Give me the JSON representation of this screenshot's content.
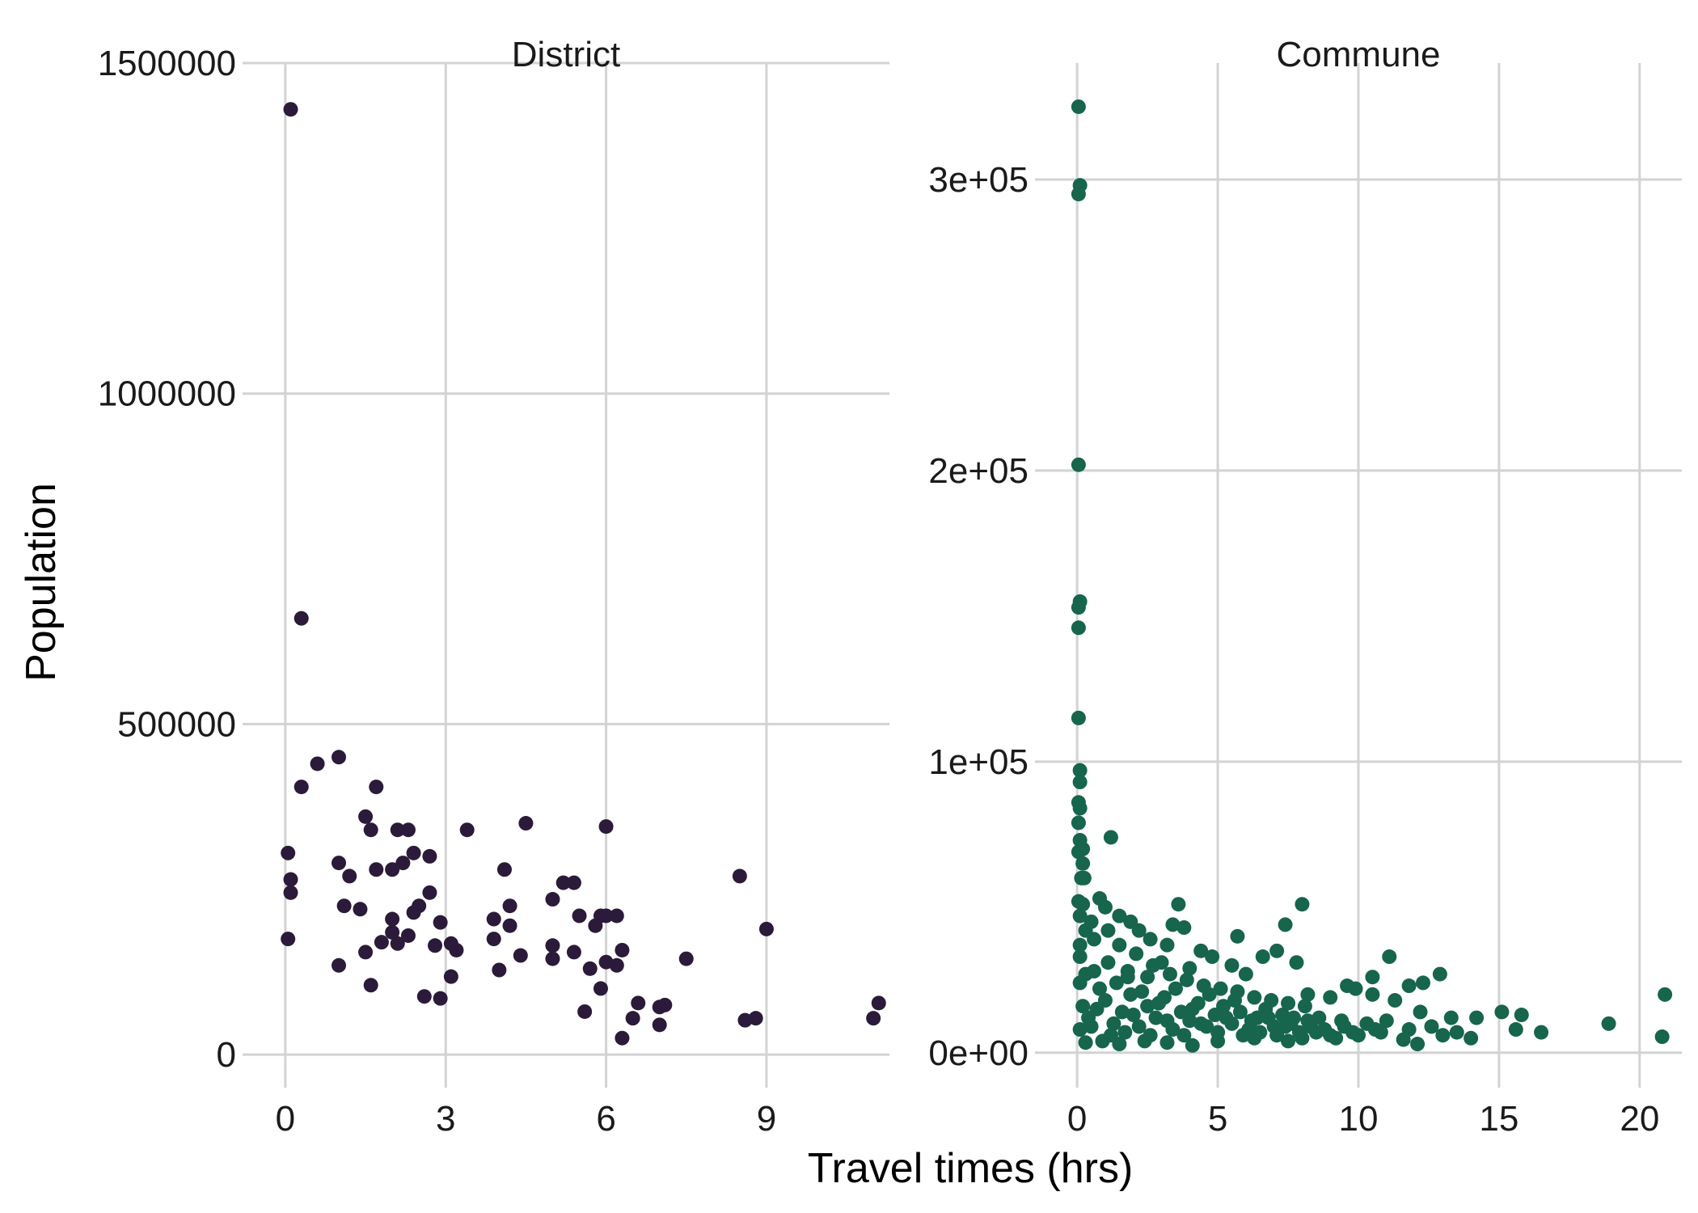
{
  "chart_data": {
    "type": "scatter",
    "xlabel": "Travel times (hrs)",
    "ylabel": "Population",
    "grid": true,
    "panels": [
      {
        "name": "District",
        "color": "#2b1a3a",
        "xlim": [
          -0.8,
          11.3
        ],
        "ylim": [
          -50000,
          1500000
        ],
        "xticks": [
          0,
          3,
          6,
          9
        ],
        "xtick_labels": [
          "0",
          "3",
          "6",
          "9"
        ],
        "yticks": [
          0,
          500000,
          1000000,
          1500000
        ],
        "ytick_labels": [
          "0",
          "500000",
          "1000000",
          "1500000"
        ],
        "points": [
          [
            0.1,
            1430000
          ],
          [
            0.3,
            660000
          ],
          [
            0.6,
            440000
          ],
          [
            1.0,
            450000
          ],
          [
            0.3,
            405000
          ],
          [
            1.7,
            405000
          ],
          [
            1.5,
            360000
          ],
          [
            1.6,
            340000
          ],
          [
            2.1,
            340000
          ],
          [
            2.3,
            340000
          ],
          [
            3.4,
            340000
          ],
          [
            4.5,
            350000
          ],
          [
            6.0,
            345000
          ],
          [
            0.05,
            305000
          ],
          [
            2.4,
            305000
          ],
          [
            2.7,
            300000
          ],
          [
            2.2,
            290000
          ],
          [
            2.0,
            280000
          ],
          [
            1.0,
            290000
          ],
          [
            1.7,
            280000
          ],
          [
            4.1,
            280000
          ],
          [
            8.5,
            270000
          ],
          [
            0.1,
            265000
          ],
          [
            1.2,
            270000
          ],
          [
            5.2,
            260000
          ],
          [
            5.4,
            260000
          ],
          [
            0.1,
            245000
          ],
          [
            2.7,
            245000
          ],
          [
            5.0,
            235000
          ],
          [
            2.5,
            225000
          ],
          [
            1.1,
            225000
          ],
          [
            1.4,
            220000
          ],
          [
            4.2,
            225000
          ],
          [
            2.4,
            215000
          ],
          [
            5.5,
            210000
          ],
          [
            5.9,
            210000
          ],
          [
            6.0,
            210000
          ],
          [
            6.2,
            210000
          ],
          [
            2.9,
            200000
          ],
          [
            2.0,
            205000
          ],
          [
            3.9,
            205000
          ],
          [
            4.2,
            195000
          ],
          [
            5.8,
            195000
          ],
          [
            2.0,
            185000
          ],
          [
            2.3,
            180000
          ],
          [
            9.0,
            190000
          ],
          [
            0.05,
            175000
          ],
          [
            1.8,
            170000
          ],
          [
            2.1,
            168000
          ],
          [
            2.8,
            165000
          ],
          [
            3.1,
            168000
          ],
          [
            3.9,
            175000
          ],
          [
            5.0,
            165000
          ],
          [
            3.2,
            158000
          ],
          [
            1.5,
            155000
          ],
          [
            5.4,
            155000
          ],
          [
            6.3,
            158000
          ],
          [
            4.4,
            150000
          ],
          [
            5.0,
            145000
          ],
          [
            7.5,
            145000
          ],
          [
            6.0,
            140000
          ],
          [
            6.2,
            135000
          ],
          [
            1.0,
            135000
          ],
          [
            4.0,
            128000
          ],
          [
            5.7,
            130000
          ],
          [
            3.1,
            118000
          ],
          [
            1.6,
            105000
          ],
          [
            5.9,
            100000
          ],
          [
            2.6,
            88000
          ],
          [
            2.9,
            85000
          ],
          [
            6.6,
            78000
          ],
          [
            7.0,
            72000
          ],
          [
            7.1,
            75000
          ],
          [
            11.1,
            78000
          ],
          [
            5.6,
            65000
          ],
          [
            6.5,
            55000
          ],
          [
            8.6,
            52000
          ],
          [
            8.8,
            55000
          ],
          [
            11.0,
            55000
          ],
          [
            7.0,
            45000
          ],
          [
            6.3,
            25000
          ]
        ]
      },
      {
        "name": "Commune",
        "color": "#16654c",
        "xlim": [
          -1.5,
          21.5
        ],
        "ylim": [
          -12000,
          340000
        ],
        "xticks": [
          0,
          5,
          10,
          15,
          20
        ],
        "xtick_labels": [
          "0",
          "5",
          "10",
          "15",
          "20"
        ],
        "yticks": [
          0,
          100000,
          200000,
          300000
        ],
        "ytick_labels": [
          "0e+00",
          "1e+05",
          "2e+05",
          "3e+05"
        ],
        "points": [
          [
            0.05,
            325000
          ],
          [
            0.1,
            298000
          ],
          [
            0.05,
            295000
          ],
          [
            0.05,
            202000
          ],
          [
            0.1,
            155000
          ],
          [
            0.05,
            153000
          ],
          [
            0.05,
            146000
          ],
          [
            0.05,
            115000
          ],
          [
            0.1,
            97000
          ],
          [
            0.1,
            93000
          ],
          [
            0.05,
            86000
          ],
          [
            0.1,
            84000
          ],
          [
            0.05,
            79000
          ],
          [
            0.1,
            73000
          ],
          [
            0.2,
            70000
          ],
          [
            0.05,
            69000
          ],
          [
            0.2,
            65000
          ],
          [
            1.2,
            74000
          ],
          [
            0.15,
            60000
          ],
          [
            0.25,
            60000
          ],
          [
            0.05,
            52000
          ],
          [
            0.2,
            51000
          ],
          [
            0.8,
            53000
          ],
          [
            1.0,
            50000
          ],
          [
            3.6,
            51000
          ],
          [
            8.0,
            51000
          ],
          [
            0.1,
            47000
          ],
          [
            0.5,
            45000
          ],
          [
            1.5,
            47000
          ],
          [
            1.9,
            45000
          ],
          [
            3.4,
            44000
          ],
          [
            7.4,
            44000
          ],
          [
            3.8,
            43000
          ],
          [
            0.3,
            42000
          ],
          [
            1.1,
            42000
          ],
          [
            2.2,
            42000
          ],
          [
            5.7,
            40000
          ],
          [
            0.6,
            39000
          ],
          [
            2.6,
            39000
          ],
          [
            0.1,
            37000
          ],
          [
            1.5,
            37000
          ],
          [
            3.2,
            37000
          ],
          [
            4.4,
            35000
          ],
          [
            7.1,
            35000
          ],
          [
            11.1,
            33000
          ],
          [
            4.8,
            33000
          ],
          [
            6.6,
            33000
          ],
          [
            0.1,
            33000
          ],
          [
            7.8,
            31000
          ],
          [
            3.0,
            31000
          ],
          [
            5.5,
            30000
          ],
          [
            12.9,
            27000
          ],
          [
            10.5,
            26000
          ],
          [
            12.3,
            24000
          ],
          [
            11.8,
            23000
          ],
          [
            9.6,
            23000
          ],
          [
            9.9,
            22000
          ],
          [
            20.9,
            20000
          ],
          [
            10.5,
            20000
          ],
          [
            0.1,
            24000
          ],
          [
            0.3,
            27000
          ],
          [
            1.8,
            28000
          ],
          [
            2.5,
            26000
          ],
          [
            4.0,
            29000
          ],
          [
            6.0,
            27000
          ],
          [
            8.2,
            20000
          ],
          [
            9.0,
            19000
          ],
          [
            11.3,
            18000
          ],
          [
            12.2,
            14000
          ],
          [
            13.3,
            12000
          ],
          [
            14.2,
            12000
          ],
          [
            15.1,
            14000
          ],
          [
            15.8,
            13000
          ],
          [
            15.6,
            8000
          ],
          [
            16.5,
            7000
          ],
          [
            18.9,
            10000
          ],
          [
            20.8,
            5500
          ],
          [
            14.0,
            5000
          ],
          [
            13.0,
            6000
          ],
          [
            12.1,
            3000
          ],
          [
            11.6,
            4500
          ],
          [
            10.0,
            6000
          ],
          [
            9.2,
            5000
          ],
          [
            8.5,
            7000
          ],
          [
            7.5,
            4000
          ],
          [
            6.3,
            5000
          ],
          [
            5.0,
            4000
          ],
          [
            4.1,
            2500
          ],
          [
            3.2,
            3500
          ],
          [
            2.4,
            4000
          ],
          [
            1.5,
            3000
          ],
          [
            0.9,
            4000
          ],
          [
            0.3,
            3500
          ],
          [
            0.1,
            8000
          ],
          [
            0.4,
            12000
          ],
          [
            0.7,
            15000
          ],
          [
            1.0,
            18000
          ],
          [
            1.3,
            10000
          ],
          [
            1.6,
            14000
          ],
          [
            1.9,
            20000
          ],
          [
            2.2,
            9000
          ],
          [
            2.5,
            16000
          ],
          [
            2.8,
            12000
          ],
          [
            3.1,
            19000
          ],
          [
            3.4,
            8000
          ],
          [
            3.7,
            14000
          ],
          [
            4.0,
            11000
          ],
          [
            4.3,
            17000
          ],
          [
            4.6,
            9000
          ],
          [
            4.9,
            13000
          ],
          [
            5.2,
            16000
          ],
          [
            5.5,
            10000
          ],
          [
            5.8,
            14000
          ],
          [
            6.1,
            8000
          ],
          [
            6.4,
            12000
          ],
          [
            6.7,
            15000
          ],
          [
            7.0,
            9000
          ],
          [
            7.3,
            13000
          ],
          [
            7.6,
            10000
          ],
          [
            7.9,
            7000
          ],
          [
            8.2,
            11000
          ],
          [
            8.8,
            8000
          ],
          [
            9.5,
            9000
          ],
          [
            10.3,
            10000
          ],
          [
            10.8,
            7000
          ],
          [
            11.0,
            11000
          ],
          [
            11.8,
            8000
          ],
          [
            12.6,
            9000
          ],
          [
            13.5,
            7000
          ],
          [
            0.2,
            16000
          ],
          [
            0.5,
            9000
          ],
          [
            0.8,
            22000
          ],
          [
            1.2,
            6000
          ],
          [
            1.4,
            24000
          ],
          [
            1.7,
            7000
          ],
          [
            2.0,
            13000
          ],
          [
            2.3,
            21000
          ],
          [
            2.6,
            6000
          ],
          [
            2.9,
            17000
          ],
          [
            3.2,
            11000
          ],
          [
            3.5,
            22000
          ],
          [
            3.8,
            6000
          ],
          [
            4.1,
            15000
          ],
          [
            4.4,
            10000
          ],
          [
            4.7,
            20000
          ],
          [
            5.0,
            7000
          ],
          [
            5.3,
            12000
          ],
          [
            5.6,
            18000
          ],
          [
            5.9,
            6000
          ],
          [
            6.2,
            11000
          ],
          [
            6.5,
            7000
          ],
          [
            6.8,
            12000
          ],
          [
            7.1,
            6000
          ],
          [
            7.4,
            9000
          ],
          [
            7.7,
            12000
          ],
          [
            8.0,
            5000
          ],
          [
            8.3,
            9000
          ],
          [
            8.6,
            12000
          ],
          [
            9.0,
            6000
          ],
          [
            9.4,
            11000
          ],
          [
            9.8,
            7000
          ],
          [
            10.6,
            8000
          ],
          [
            0.6,
            28000
          ],
          [
            1.1,
            31000
          ],
          [
            1.8,
            26000
          ],
          [
            2.1,
            34000
          ],
          [
            2.7,
            30000
          ],
          [
            3.3,
            27000
          ],
          [
            3.9,
            25000
          ],
          [
            4.5,
            23000
          ],
          [
            5.1,
            22000
          ],
          [
            5.7,
            21000
          ],
          [
            6.3,
            19000
          ],
          [
            6.9,
            18000
          ],
          [
            7.5,
            17000
          ],
          [
            8.1,
            16000
          ]
        ]
      }
    ]
  }
}
